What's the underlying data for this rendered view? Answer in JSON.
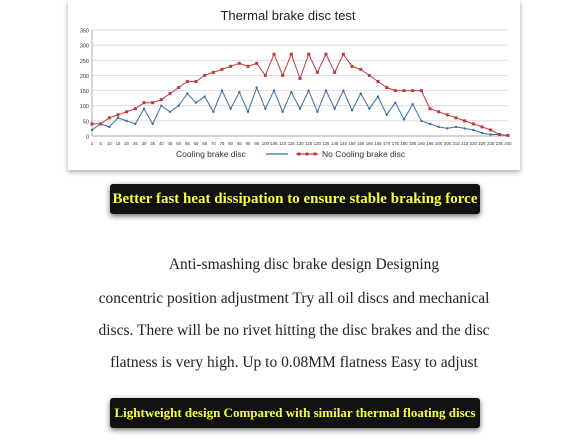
{
  "chart_data": {
    "type": "line",
    "title": "Thermal brake disc test",
    "xlabel": "",
    "ylabel": "",
    "ylim": [
      0,
      350
    ],
    "yticks": [
      0,
      50,
      100,
      150,
      200,
      250,
      300,
      350
    ],
    "grid": true,
    "legend": "bottom",
    "x": [
      1,
      5,
      10,
      15,
      20,
      25,
      30,
      35,
      40,
      45,
      50,
      55,
      60,
      65,
      70,
      75,
      80,
      85,
      90,
      95,
      100,
      105,
      110,
      115,
      120,
      125,
      130,
      135,
      140,
      145,
      150,
      155,
      160,
      165,
      170,
      175,
      180,
      185,
      190,
      195,
      200,
      205,
      210,
      215,
      220,
      225,
      230,
      235,
      240
    ],
    "series": [
      {
        "name": "Cooling brake disc",
        "color": "#3a6ea5",
        "values": [
          20,
          40,
          30,
          60,
          50,
          40,
          90,
          40,
          100,
          80,
          100,
          140,
          110,
          130,
          80,
          150,
          90,
          145,
          80,
          160,
          90,
          150,
          80,
          145,
          90,
          150,
          80,
          150,
          90,
          150,
          85,
          140,
          90,
          130,
          70,
          110,
          55,
          105,
          50,
          40,
          30,
          25,
          30,
          25,
          20,
          10,
          5,
          5,
          2
        ]
      },
      {
        "name": "No Cooling brake disc",
        "color": "#c0393b",
        "values": [
          40,
          40,
          60,
          70,
          80,
          90,
          110,
          110,
          120,
          140,
          160,
          180,
          180,
          200,
          210,
          220,
          230,
          240,
          230,
          240,
          200,
          270,
          200,
          270,
          190,
          270,
          210,
          270,
          210,
          270,
          230,
          220,
          200,
          180,
          160,
          150,
          150,
          150,
          150,
          90,
          80,
          70,
          60,
          50,
          40,
          30,
          20,
          5,
          2
        ]
      }
    ],
    "xtick_labels": [
      "1",
      "5",
      "10",
      "15",
      "20",
      "25",
      "30",
      "35",
      "40",
      "45",
      "50",
      "55",
      "60",
      "65",
      "70",
      "75",
      "80",
      "85",
      "90",
      "95",
      "100",
      "105",
      "110",
      "115",
      "120",
      "125",
      "130",
      "135",
      "140",
      "145",
      "150",
      "155",
      "160",
      "165",
      "170",
      "175",
      "180",
      "185",
      "190",
      "195",
      "200",
      "205",
      "210",
      "215",
      "220",
      "225",
      "230",
      "235",
      "240"
    ]
  },
  "banners": {
    "top": "Better fast heat dissipation to ensure stable braking force",
    "bottom": "Lightweight design Compared with similar thermal floating discs"
  },
  "description": {
    "line1": "Anti-smashing disc brake design Designing",
    "line2": "concentric position adjustment Try all oil discs and mechanical",
    "line3": "discs. There will be no rivet hitting the disc brakes and the disc",
    "line4": "flatness is very high. Up to 0.08MM flatness Easy to adjust"
  }
}
